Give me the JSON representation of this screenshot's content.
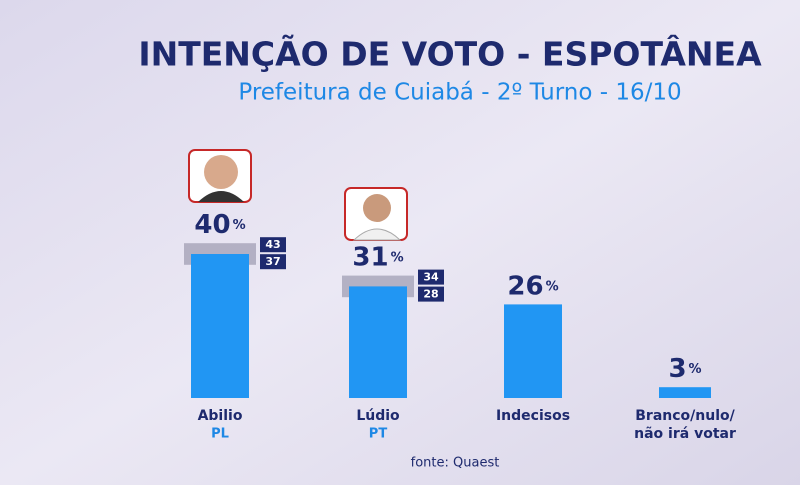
{
  "chart_data": {
    "type": "bar",
    "title": "INTENÇÃO DE VOTO - ESPOTÂNEA",
    "subtitle": "Prefeitura de Cuiabá - 2º Turno - 16/10",
    "categories": [
      [
        "Abilio",
        "PL"
      ],
      [
        "Lúdio",
        "PT"
      ],
      [
        "Indecisos"
      ],
      [
        "Branco/nulo/",
        "não irá votar"
      ]
    ],
    "values": [
      40,
      31,
      26,
      3
    ],
    "unit": "%",
    "ranges": [
      {
        "high": 43,
        "low": 37
      },
      {
        "high": 34,
        "low": 28
      },
      null,
      null
    ],
    "color": "#2196f3",
    "source": "fonte: Quaest"
  }
}
